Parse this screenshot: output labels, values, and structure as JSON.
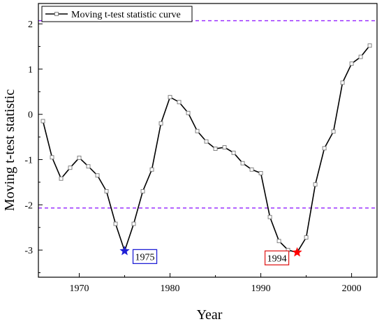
{
  "chart_data": {
    "type": "line",
    "title": "",
    "xlabel": "Year",
    "ylabel": "Moving t-test statistic",
    "xlim": [
      1965.5,
      2002.8
    ],
    "ylim": [
      -3.6,
      2.45
    ],
    "xticks": [
      1970,
      1980,
      1990,
      2000
    ],
    "yticks": [
      -3,
      -2,
      -1,
      0,
      1,
      2
    ],
    "grid": false,
    "legend": {
      "position": "top-left",
      "entries": [
        "Moving t-test statistic curve"
      ]
    },
    "series": [
      {
        "name": "Moving t-test statistic curve",
        "color": "#000000",
        "marker": "open-square",
        "x": [
          1966,
          1967,
          1968,
          1969,
          1970,
          1971,
          1972,
          1973,
          1974,
          1975,
          1976,
          1977,
          1978,
          1979,
          1980,
          1981,
          1982,
          1983,
          1984,
          1985,
          1986,
          1987,
          1988,
          1989,
          1990,
          1991,
          1992,
          1993,
          1994,
          1995,
          1996,
          1997,
          1998,
          1999,
          2000,
          2001,
          2002
        ],
        "y": [
          -0.15,
          -0.95,
          -1.42,
          -1.18,
          -0.96,
          -1.15,
          -1.35,
          -1.7,
          -2.42,
          -3.02,
          -2.42,
          -1.7,
          -1.22,
          -0.2,
          0.38,
          0.27,
          0.03,
          -0.37,
          -0.6,
          -0.76,
          -0.73,
          -0.85,
          -1.08,
          -1.22,
          -1.3,
          -2.27,
          -2.8,
          -3.0,
          -3.05,
          -2.72,
          -1.55,
          -0.75,
          -0.38,
          0.7,
          1.12,
          1.27,
          1.52
        ]
      }
    ],
    "reference_lines": [
      {
        "y": 2.07,
        "color": "#9b30ff",
        "style": "dashed"
      },
      {
        "y": -2.07,
        "color": "#9b30ff",
        "style": "dashed"
      }
    ],
    "annotations": [
      {
        "x": 1975,
        "y": -3.02,
        "label": "1975",
        "marker_color": "#1f1fd6",
        "box_color": "#1f1fd6",
        "side": "right"
      },
      {
        "x": 1994,
        "y": -3.05,
        "label": "1994",
        "marker_color": "#ff0000",
        "box_color": "#e02020",
        "side": "left"
      }
    ]
  }
}
